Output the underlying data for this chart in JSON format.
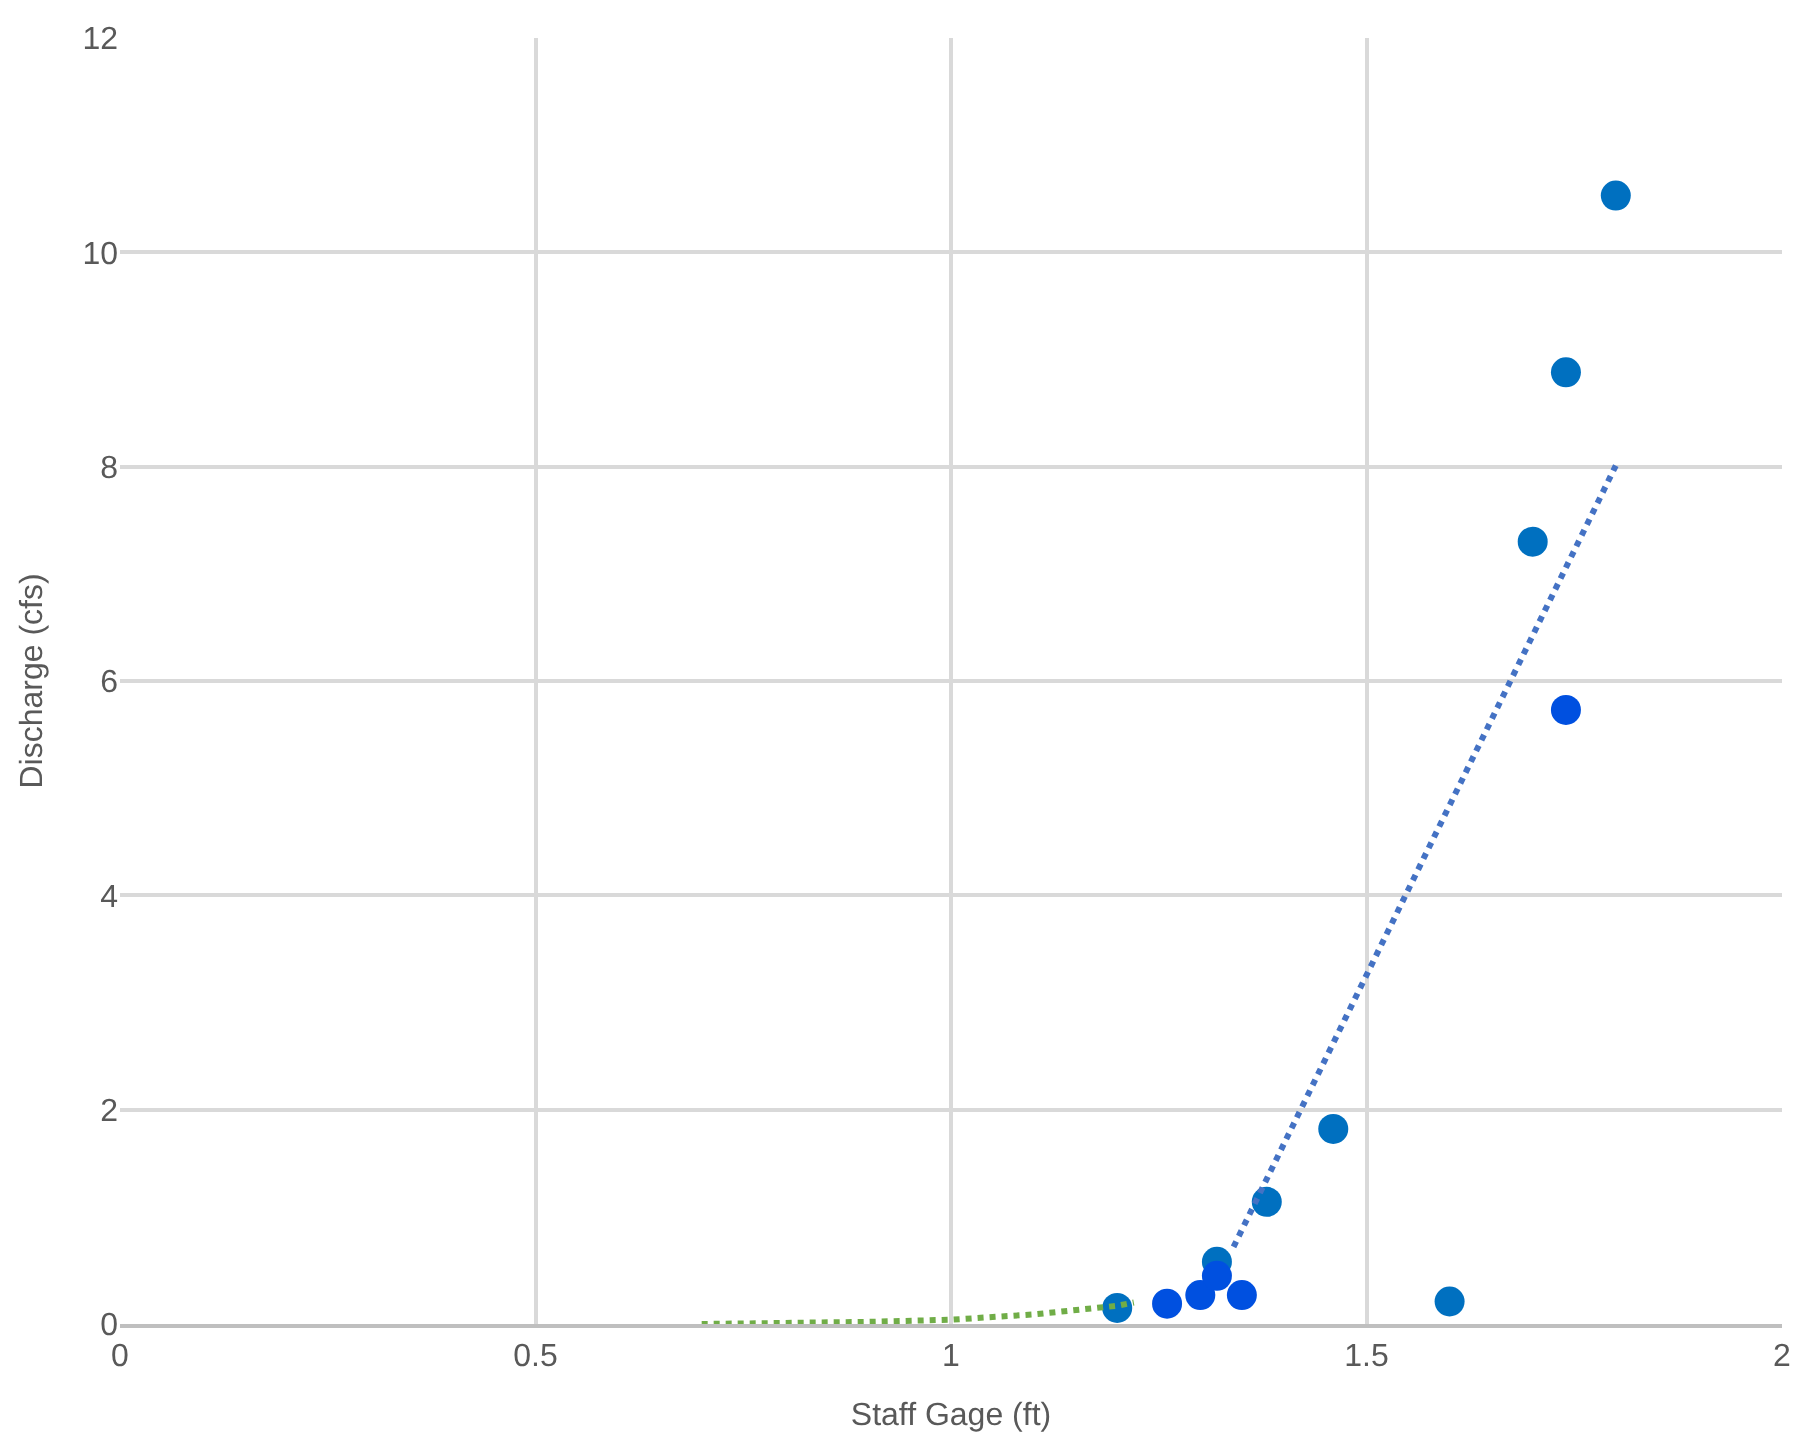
{
  "chart_data": {
    "type": "scatter",
    "xlabel": "Staff Gage (ft)",
    "ylabel": "Discharge (cfs)",
    "xlim": [
      0,
      2
    ],
    "ylim": [
      0,
      12
    ],
    "xticks": [
      0,
      0.5,
      1,
      1.5,
      2
    ],
    "yticks": [
      0,
      2,
      4,
      6,
      8,
      10,
      12
    ],
    "grid": true,
    "marker": "circle",
    "series": [
      {
        "color": "#0070c0",
        "x": [
          1.2,
          1.32,
          1.38,
          1.46,
          1.6,
          1.7,
          1.74,
          1.8
        ],
        "values": [
          0.15,
          0.58,
          1.14,
          1.82,
          0.21,
          7.3,
          8.88,
          10.53
        ]
      },
      {
        "color": "#0050e0",
        "x": [
          1.26,
          1.3,
          1.32,
          1.35,
          1.74
        ],
        "values": [
          0.19,
          0.27,
          0.45,
          0.27,
          5.73
        ]
      },
      {
        "type": "line",
        "line_style": "dotted",
        "marker": "none",
        "color": "#4472c4",
        "x": [
          1.34,
          1.8
        ],
        "values": [
          0.72,
          8.01
        ]
      },
      {
        "type": "line",
        "line_style": "dotted",
        "marker": "none",
        "color": "#70ad47",
        "x": [
          0.7,
          0.8,
          0.9,
          1.0,
          1.1,
          1.2,
          1.22
        ],
        "values": [
          0,
          0.01,
          0.02,
          0.04,
          0.09,
          0.17,
          0.2
        ]
      }
    ]
  }
}
